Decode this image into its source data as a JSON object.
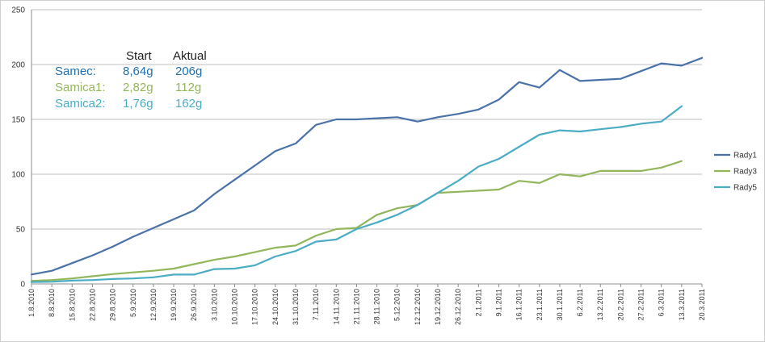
{
  "chart_data": {
    "type": "line",
    "title": "",
    "xlabel": "",
    "ylabel": "",
    "ylim": [
      0,
      250
    ],
    "yticks": [
      "0",
      "50",
      "100",
      "150",
      "200",
      "250"
    ],
    "grid": true,
    "legend_position": "right",
    "categories": [
      "1.8.2010",
      "8.8.2010",
      "15.8.2010",
      "22.8.2010",
      "29.8.2010",
      "5.9.2010",
      "12.9.2010",
      "19.9.2010",
      "26.9.2010",
      "3.10.2010",
      "10.10.2010",
      "17.10.2010",
      "24.10.2010",
      "31.10.2010",
      "7.11.2010",
      "14.11.2010",
      "21.11.2010",
      "28.11.2010",
      "5.12.2010",
      "12.12.2010",
      "19.12.2010",
      "26.12.2010",
      "2.1.2011",
      "9.1.2011",
      "16.1.2011",
      "23.1.2011",
      "30.1.2011",
      "6.2.2011",
      "13.2.2011",
      "20.2.2011",
      "27.2.2011",
      "6.3.2011",
      "13.3.2011",
      "20.3.2011"
    ],
    "series": [
      {
        "name": "Rady1",
        "color": "#4a72a8",
        "values": [
          8.6,
          12,
          19,
          26,
          34,
          43,
          51,
          59,
          67,
          82,
          95,
          108,
          121,
          128,
          145,
          150,
          150,
          151,
          152,
          148,
          152,
          155,
          159,
          168,
          184,
          179,
          195,
          185,
          186,
          187,
          194,
          201,
          199,
          206
        ]
      },
      {
        "name": "Rady3",
        "color": "#92b65a",
        "values": [
          2.8,
          3.5,
          5,
          7,
          9,
          10.5,
          12,
          14,
          18,
          22,
          25,
          29,
          33,
          35,
          44,
          50,
          51,
          63,
          69,
          72,
          83,
          84,
          85,
          86,
          94,
          92,
          100,
          98,
          103,
          103,
          103,
          106,
          112,
          null
        ]
      },
      {
        "name": "Rady5",
        "color": "#4bacc6",
        "values": [
          1.8,
          2,
          3,
          3.5,
          4.5,
          5,
          6,
          8.5,
          8.5,
          13.5,
          14,
          17,
          25,
          30,
          38.5,
          40.5,
          50,
          56,
          63,
          72,
          83,
          94,
          107,
          114,
          125,
          136,
          140,
          139,
          141,
          143,
          146,
          148,
          162,
          null
        ]
      }
    ],
    "annotations": {
      "header_start": "Start",
      "header_aktual": "Aktual",
      "rows": [
        {
          "label": "Samec:",
          "start": "8,64g",
          "aktual": "206g",
          "color": "#1f6fae"
        },
        {
          "label": "Samica1:",
          "start": "2,82g",
          "aktual": "112g",
          "color": "#92b65a"
        },
        {
          "label": "Samica2:",
          "start": "1,76g",
          "aktual": "162g",
          "color": "#4bacc6"
        }
      ]
    }
  }
}
